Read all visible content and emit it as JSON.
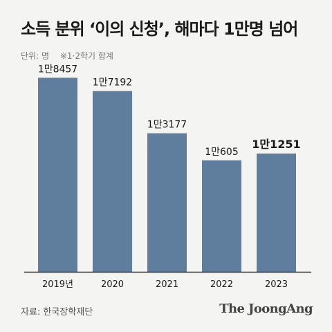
{
  "header": {
    "title": "소득 분위 ‘이의 신청’, 해마다 1만명 넘어",
    "unit": "단위: 명",
    "note": "※1·2학기 합계"
  },
  "footer": {
    "source": "자료: 한국장학재단",
    "logo": "The JoongAng"
  },
  "chart_data": {
    "type": "bar",
    "title": "소득 분위 ‘이의 신청’, 해마다 1만명 넘어",
    "xlabel": "",
    "ylabel": "",
    "unit": "명",
    "categories": [
      "2019년",
      "2020",
      "2021",
      "2022",
      "2023"
    ],
    "values": [
      18457,
      17192,
      13177,
      10605,
      11251
    ],
    "data_labels": [
      "1만8457",
      "1만7192",
      "1만3177",
      "1만605",
      "1만1251"
    ],
    "highlight_index": 4,
    "ylim": [
      0,
      20000
    ],
    "grid": false,
    "bar_color": "#5f7d9c",
    "axis_color": "#333333"
  }
}
